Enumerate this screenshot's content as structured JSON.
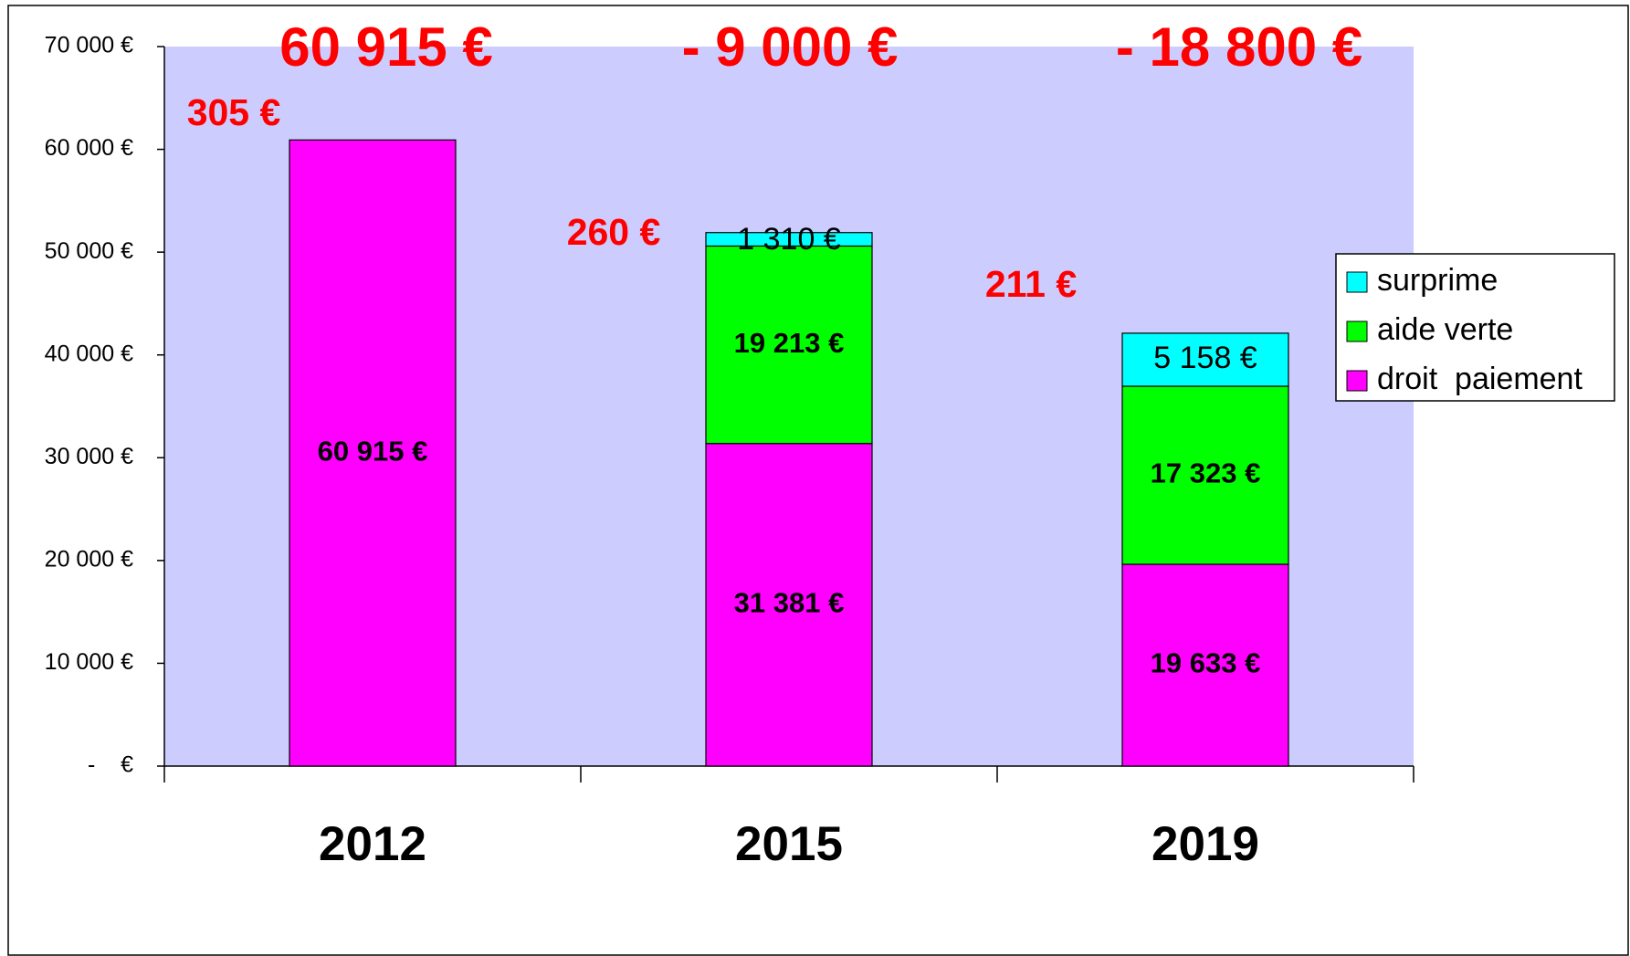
{
  "chart_data": {
    "type": "stacked_bar",
    "categories": [
      "2012",
      "2015",
      "2019"
    ],
    "series": [
      {
        "name": "droit  paiement",
        "color": "#ff00ff",
        "values": [
          60915,
          31381,
          19633
        ],
        "value_labels": [
          "60 915 €",
          "31 381 €",
          "19 633 €"
        ]
      },
      {
        "name": "aide verte",
        "color": "#00ff00",
        "values": [
          null,
          19213,
          17323
        ],
        "value_labels": [
          null,
          "19 213 €",
          "17 323 €"
        ]
      },
      {
        "name": "surprime",
        "color": "#00ffff",
        "values": [
          null,
          1310,
          5158
        ],
        "value_labels": [
          null,
          "1 310 €",
          "5 158 €"
        ]
      }
    ],
    "annotations": [
      "60 915 €",
      "- 9 000 €",
      "- 18 800 €",
      "305 €",
      "260 €",
      "211 €"
    ],
    "ylim": [
      0,
      70000
    ],
    "yticks": [
      {
        "value": 0,
        "label": "-    €"
      },
      {
        "value": 10000,
        "label": "10 000 €"
      },
      {
        "value": 20000,
        "label": "20 000 €"
      },
      {
        "value": 30000,
        "label": "30 000 €"
      },
      {
        "value": 40000,
        "label": "40 000 €"
      },
      {
        "value": 50000,
        "label": "50 000 €"
      },
      {
        "value": 60000,
        "label": "60 000 €"
      },
      {
        "value": 70000,
        "label": "70 000 €"
      }
    ],
    "plot_background": "#ccccff",
    "legend": "right"
  }
}
